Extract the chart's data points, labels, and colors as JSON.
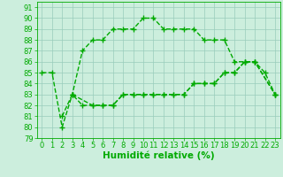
{
  "line1_x": [
    0,
    1,
    2,
    3,
    4,
    5,
    6,
    7,
    8,
    9,
    10,
    11,
    12,
    13,
    14,
    15,
    16,
    17,
    18,
    19,
    20,
    21,
    22,
    23
  ],
  "line1_y": [
    85,
    85,
    80,
    83,
    87,
    88,
    88,
    89,
    89,
    89,
    90,
    90,
    89,
    89,
    89,
    89,
    88,
    88,
    88,
    86,
    86,
    86,
    85,
    83
  ],
  "line2_x": [
    2,
    3,
    4,
    5,
    6,
    7,
    8,
    9,
    10,
    11,
    12,
    13,
    14,
    15,
    16,
    17,
    18,
    19,
    20,
    21,
    23
  ],
  "line2_y": [
    81,
    83,
    82,
    82,
    82,
    82,
    83,
    83,
    83,
    83,
    83,
    83,
    83,
    84,
    84,
    84,
    85,
    85,
    86,
    86,
    83
  ],
  "line3_x": [
    3,
    5,
    6,
    7,
    8,
    9,
    10,
    11,
    12,
    13,
    14,
    15,
    16,
    17,
    18,
    19,
    20,
    21,
    23
  ],
  "line3_y": [
    83,
    82,
    82,
    82,
    83,
    83,
    83,
    83,
    83,
    83,
    83,
    84,
    84,
    84,
    85,
    85,
    86,
    86,
    83
  ],
  "line_color": "#00aa00",
  "bg_color": "#cceedd",
  "grid_major_color": "#99ccbb",
  "grid_minor_color": "#bbddd0",
  "xlabel": "Humidité relative (%)",
  "xlim": [
    -0.5,
    23.5
  ],
  "ylim": [
    79,
    91.5
  ],
  "yticks": [
    79,
    80,
    81,
    82,
    83,
    84,
    85,
    86,
    87,
    88,
    89,
    90,
    91
  ],
  "xticks": [
    0,
    1,
    2,
    3,
    4,
    5,
    6,
    7,
    8,
    9,
    10,
    11,
    12,
    13,
    14,
    15,
    16,
    17,
    18,
    19,
    20,
    21,
    22,
    23
  ],
  "markersize": 2.5,
  "linewidth": 1.0,
  "xlabel_fontsize": 7.5,
  "tick_fontsize": 6
}
